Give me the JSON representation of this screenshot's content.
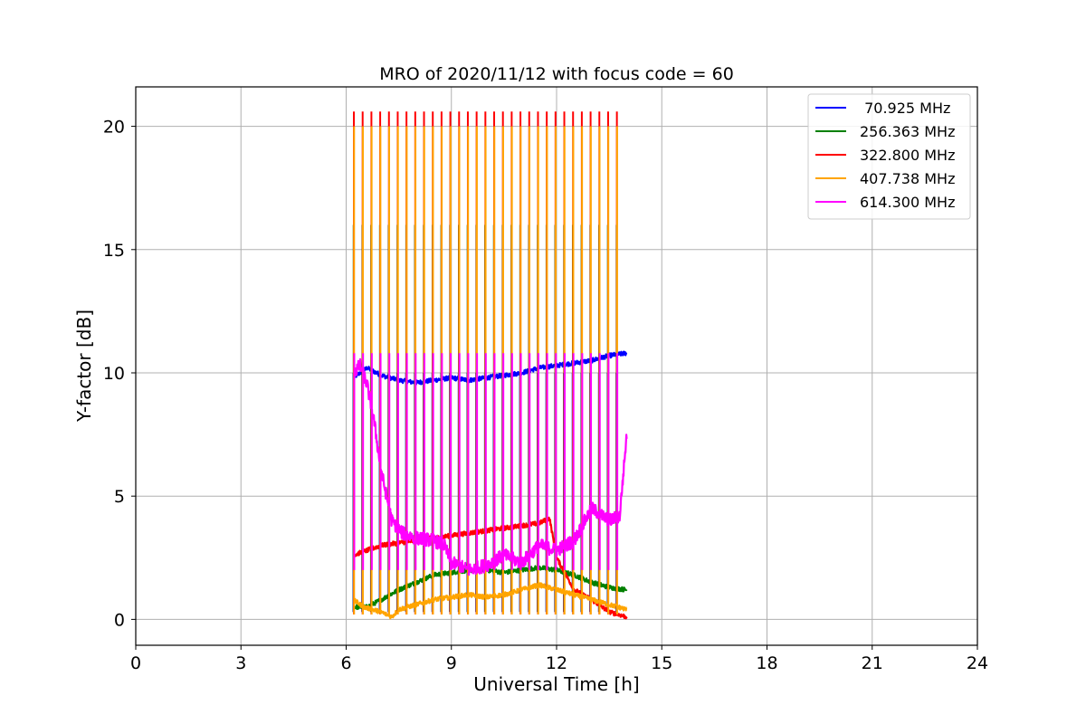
{
  "chart_data": {
    "type": "line",
    "title": "MRO of 2020/11/12 with focus code = 60",
    "xlabel": "Universal Time [h]",
    "ylabel": "Y-factor [dB]",
    "xlim": [
      0,
      24
    ],
    "ylim": [
      -1.05,
      21.6
    ],
    "xticks": [
      0,
      3,
      6,
      9,
      12,
      15,
      18,
      21,
      24
    ],
    "yticks": [
      0,
      5,
      10,
      15,
      20
    ],
    "grid": true,
    "legend_position": "top-right",
    "spike_times": [
      6.22,
      6.47,
      6.72,
      6.97,
      7.22,
      7.47,
      7.72,
      7.97,
      8.22,
      8.47,
      8.72,
      8.97,
      9.22,
      9.47,
      9.72,
      9.97,
      10.22,
      10.47,
      10.72,
      10.97,
      11.22,
      11.47,
      11.72,
      11.97,
      12.22,
      12.47,
      12.72,
      12.97,
      13.22,
      13.47,
      13.72
    ],
    "series": [
      {
        "name": "70.925 MHz",
        "legend_label": " 70.925 MHz",
        "color": "#0000ff",
        "x": [
          6.2,
          6.6,
          7.0,
          7.5,
          8.0,
          8.5,
          9.0,
          9.5,
          10.0,
          10.5,
          11.0,
          11.5,
          12.0,
          12.5,
          13.0,
          13.5,
          14.0
        ],
        "y": [
          9.8,
          10.2,
          9.9,
          9.7,
          9.6,
          9.7,
          9.8,
          9.7,
          9.8,
          9.9,
          10.0,
          10.2,
          10.3,
          10.4,
          10.5,
          10.7,
          10.8
        ],
        "spike_min": 0.3,
        "spike_max": 10.0
      },
      {
        "name": "256.363 MHz",
        "legend_label": "256.363 MHz",
        "color": "#008000",
        "x": [
          6.2,
          6.6,
          7.0,
          7.5,
          8.0,
          8.5,
          9.0,
          9.5,
          10.0,
          10.5,
          11.0,
          11.5,
          12.0,
          12.5,
          13.0,
          13.5,
          14.0
        ],
        "y": [
          0.5,
          0.5,
          0.8,
          1.2,
          1.5,
          1.8,
          1.9,
          2.0,
          2.0,
          1.9,
          2.0,
          2.1,
          2.0,
          1.8,
          1.5,
          1.3,
          1.2
        ],
        "spike_min": 0.3,
        "spike_max": 16.0
      },
      {
        "name": "322.800 MHz",
        "legend_label": "322.800 MHz",
        "color": "#ff0000",
        "x": [
          6.2,
          6.6,
          7.0,
          7.5,
          8.0,
          8.5,
          9.0,
          9.5,
          10.0,
          10.5,
          11.0,
          11.5,
          11.8,
          12.0,
          12.5,
          13.0,
          13.5,
          14.0
        ],
        "y": [
          2.6,
          2.8,
          3.0,
          3.1,
          3.2,
          3.3,
          3.4,
          3.5,
          3.6,
          3.7,
          3.8,
          3.9,
          4.1,
          2.5,
          1.2,
          0.8,
          0.3,
          0.1
        ],
        "spike_min": 0.2,
        "spike_max": 20.6
      },
      {
        "name": "407.738 MHz",
        "legend_label": "407.738 MHz",
        "color": "#ffa500",
        "x": [
          6.2,
          6.5,
          7.0,
          7.3,
          7.5,
          8.0,
          8.5,
          9.0,
          9.5,
          10.0,
          10.5,
          11.0,
          11.5,
          12.0,
          12.5,
          13.0,
          13.5,
          14.0
        ],
        "y": [
          0.8,
          0.5,
          0.3,
          0.1,
          0.4,
          0.6,
          0.8,
          0.9,
          1.0,
          0.9,
          1.0,
          1.2,
          1.4,
          1.2,
          1.0,
          0.8,
          0.6,
          0.4
        ],
        "spike_min": 0.2,
        "spike_max": 20.0
      },
      {
        "name": "614.300 MHz",
        "legend_label": "614.300 MHz",
        "color": "#ff00ff",
        "x": [
          6.2,
          6.4,
          6.6,
          6.8,
          7.0,
          7.3,
          7.6,
          8.0,
          8.5,
          8.8,
          9.0,
          9.5,
          10.0,
          10.5,
          11.0,
          11.5,
          12.0,
          12.5,
          13.0,
          13.5,
          13.8,
          14.0
        ],
        "y": [
          10.0,
          10.3,
          9.5,
          8.0,
          6.0,
          4.0,
          3.5,
          3.3,
          3.2,
          3.0,
          2.3,
          2.0,
          2.2,
          2.6,
          2.3,
          3.0,
          2.8,
          3.2,
          4.5,
          4.0,
          4.2,
          7.5
        ],
        "spike_min": 2.0,
        "spike_max": 10.8
      }
    ]
  }
}
